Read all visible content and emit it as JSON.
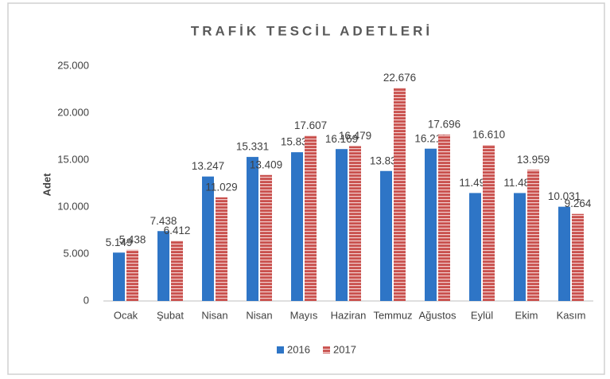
{
  "chart_data": {
    "type": "bar",
    "title": "TRAFİK TESCİL ADETLERİ",
    "y_label": "Adet",
    "categories": [
      "Ocak",
      "Şubat",
      "Nisan",
      "Nisan",
      "Mayıs",
      "Haziran",
      "Temmuz",
      "Ağustos",
      "Eylül",
      "Ekim",
      "Kasım"
    ],
    "series": [
      {
        "name": "2016",
        "color": "#2e75c6",
        "values": [
          5149,
          7438,
          13247,
          15331,
          15833,
          16169,
          13835,
          16211,
          11491,
          11488,
          10031
        ],
        "value_labels": [
          "5.149",
          "7.438",
          "13.247",
          "15.331",
          "15.833",
          "16.169",
          "13.835",
          "16.211",
          "11.491",
          "11.488",
          "10.031"
        ]
      },
      {
        "name": "2017",
        "color": "#c9504d",
        "values": [
          5438,
          6412,
          11029,
          13409,
          17607,
          16479,
          22676,
          17696,
          16610,
          13959,
          9264
        ],
        "value_labels": [
          "5.438",
          "6.412",
          "11.029",
          "13.409",
          "17.607",
          "16.479",
          "22.676",
          "17.696",
          "16.610",
          "13.959",
          "9.264"
        ]
      }
    ],
    "ylim": [
      0,
      25000
    ],
    "yticks": [
      0,
      {
        "value": 5000,
        "label": "5.000"
      },
      {
        "value": 10000,
        "label": "10.000"
      },
      {
        "value": 15000,
        "label": "15.000"
      },
      {
        "value": 20000,
        "label": "20.000"
      },
      {
        "value": 25000,
        "label": "25.000"
      }
    ],
    "grid": false,
    "legend": "bottom"
  }
}
